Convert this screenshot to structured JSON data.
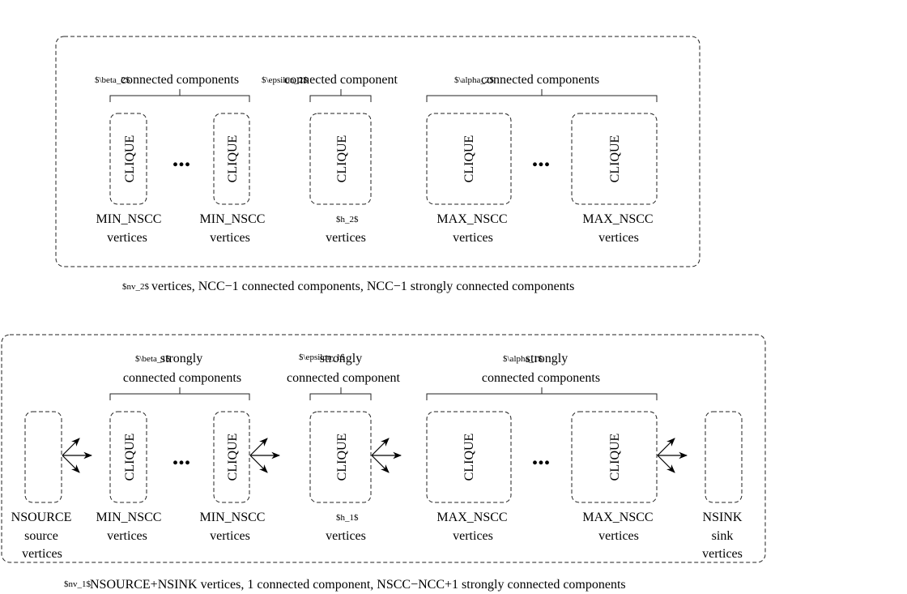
{
  "top": {
    "brace_left": {
      "math": "$\\beta_2$",
      "text": "connected components"
    },
    "brace_mid": {
      "math": "$\\epsilon_2$",
      "text": "connected component"
    },
    "brace_right": {
      "math": "$\\alpha_2$",
      "text": "connected components"
    },
    "clique": "CLIQUE",
    "ellipsis": "...",
    "labels": {
      "min1": [
        "MIN_NSCC",
        "vertices"
      ],
      "min2": [
        "MIN_NSCC",
        "vertices"
      ],
      "h": {
        "math": "$h_2$",
        "text": "vertices"
      },
      "max1": [
        "MAX_NSCC",
        "vertices"
      ],
      "max2": [
        "MAX_NSCC",
        "vertices"
      ]
    },
    "caption": {
      "math": "$nv_2$",
      "text": "vertices, NCC−1 connected components, NCC−1 strongly connected components"
    }
  },
  "bottom": {
    "brace_left": {
      "math": "$\\beta_1$",
      "line1": "strongly",
      "line2": "connected components"
    },
    "brace_mid": {
      "math": "$\\epsilon_1$",
      "line1": "strongly",
      "line2": "connected component"
    },
    "brace_right": {
      "math": "$\\alpha_1$",
      "line1": "strongly",
      "line2": "connected components"
    },
    "clique": "CLIQUE",
    "ellipsis": "...",
    "labels": {
      "source": [
        "NSOURCE",
        "source",
        "vertices"
      ],
      "min1": [
        "MIN_NSCC",
        "vertices"
      ],
      "min2": [
        "MIN_NSCC",
        "vertices"
      ],
      "h": {
        "math": "$h_1$",
        "text": "vertices"
      },
      "max1": [
        "MAX_NSCC",
        "vertices"
      ],
      "max2": [
        "MAX_NSCC",
        "vertices"
      ],
      "sink": [
        "NSINK",
        "sink",
        "vertices"
      ]
    },
    "caption": {
      "math": "$nv_1$",
      "text": "NSOURCE+NSINK vertices, 1 connected component, NSCC−NCC+1 strongly connected components"
    }
  }
}
